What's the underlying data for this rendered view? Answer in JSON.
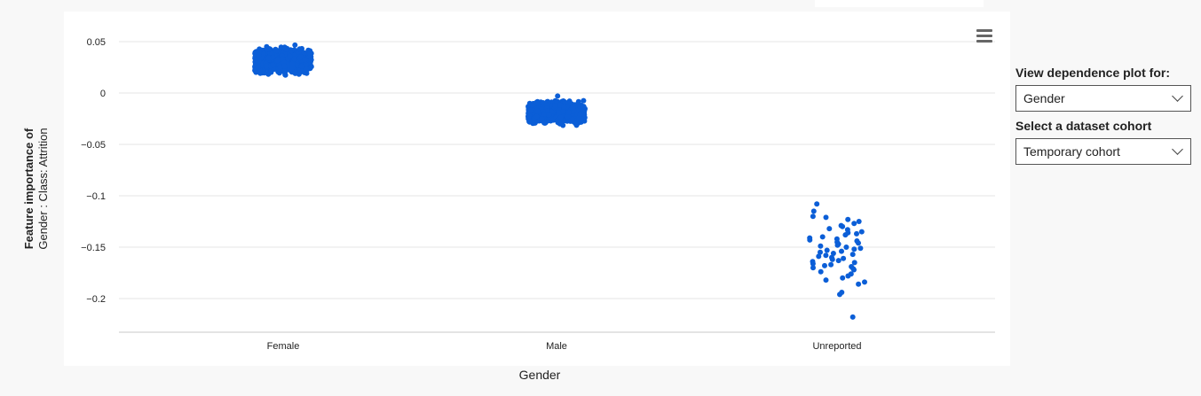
{
  "chart_data": {
    "type": "scatter",
    "xlabel": "Gender",
    "ylabel": "Feature importance of",
    "ylabel_sub": "Gender : Class: Attrition",
    "categories": [
      "Female",
      "Male",
      "Unreported"
    ],
    "ylim": [
      -0.23,
      0.055
    ],
    "yticks": [
      0.05,
      0,
      -0.05,
      -0.1,
      -0.15,
      -0.2
    ],
    "ytick_labels": [
      "0.05",
      "0",
      "−0.05",
      "−0.1",
      "−0.15",
      "−0.2"
    ],
    "grid": true,
    "point_color": "#0b5ed7",
    "series": [
      {
        "category": "Female",
        "y_min": 0.01,
        "y_max": 0.052,
        "dense": true
      },
      {
        "category": "Male",
        "y_min": -0.038,
        "y_max": 0.0,
        "dense": true
      },
      {
        "category": "Unreported",
        "values": [
          -0.108,
          -0.115,
          -0.12,
          -0.121,
          -0.123,
          -0.125,
          -0.127,
          -0.129,
          -0.13,
          -0.132,
          -0.133,
          -0.135,
          -0.136,
          -0.137,
          -0.138,
          -0.14,
          -0.141,
          -0.142,
          -0.143,
          -0.144,
          -0.145,
          -0.146,
          -0.147,
          -0.148,
          -0.149,
          -0.15,
          -0.151,
          -0.152,
          -0.153,
          -0.154,
          -0.155,
          -0.156,
          -0.157,
          -0.158,
          -0.159,
          -0.16,
          -0.161,
          -0.162,
          -0.163,
          -0.164,
          -0.165,
          -0.166,
          -0.167,
          -0.168,
          -0.169,
          -0.17,
          -0.171,
          -0.172,
          -0.174,
          -0.176,
          -0.178,
          -0.18,
          -0.182,
          -0.184,
          -0.186,
          -0.194,
          -0.196,
          -0.218
        ]
      }
    ]
  },
  "controls": {
    "dependence_label": "View dependence plot for:",
    "dependence_value": "Gender",
    "cohort_label": "Select a dataset cohort",
    "cohort_value": "Temporary cohort"
  }
}
